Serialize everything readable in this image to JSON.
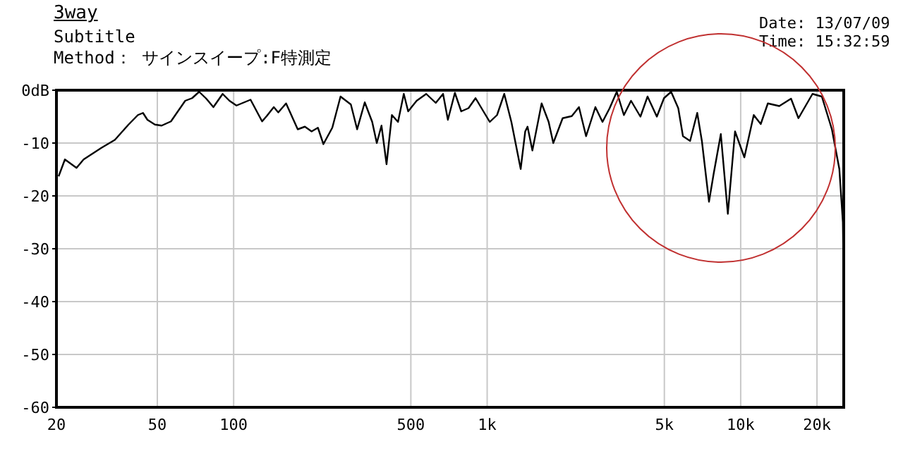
{
  "chart_data": {
    "type": "line",
    "title": "3way",
    "subtitle": "Subtitle",
    "annotations": [
      "Method： サインスイープ:F特測定",
      "Date: 13/07/09",
      "Time: 15:32:59"
    ],
    "x": [
      20.4,
      21.6,
      24,
      25.6,
      30.1,
      34,
      38.5,
      41.9,
      43.9,
      45.7,
      48.9,
      52,
      56.6,
      64.4,
      68.6,
      73.1,
      78,
      83.2,
      90.5,
      96.3,
      102.6,
      116.6,
      129.5,
      135,
      144,
      150,
      161,
      179,
      191,
      203,
      215,
      226,
      245,
      264,
      290,
      307,
      329,
      352,
      367,
      383,
      401,
      421,
      445,
      469,
      488,
      527,
      575,
      627,
      670,
      700,
      746,
      790,
      844,
      900,
      961,
      1024,
      1094,
      1168,
      1246,
      1356,
      1413,
      1443,
      1508,
      1640,
      1748,
      1823,
      1985,
      2157,
      2302,
      2456,
      2672,
      2851,
      3042,
      3245,
      3462,
      3694,
      4023,
      4292,
      4670,
      4984,
      5317,
      5673,
      5920,
      6317,
      6740,
      7030,
      7500,
      7825,
      8350,
      8900,
      9500,
      10340,
      11260,
      12000,
      12800,
      14200,
      15800,
      16900,
      19200,
      20900,
      22900,
      24500,
      25300,
      25500
    ],
    "series": [
      {
        "color": "#000000",
        "values": [
          -16.3,
          -13.1,
          -14.7,
          -13.1,
          -10.9,
          -9.4,
          -6.5,
          -4.7,
          -4.3,
          -5.6,
          -6.5,
          -6.7,
          -5.9,
          -2,
          -1.5,
          -0.3,
          -1.6,
          -3.2,
          -0.7,
          -2,
          -2.9,
          -1.8,
          -5.9,
          -4.9,
          -3.2,
          -4.2,
          -2.5,
          -7.4,
          -6.9,
          -7.8,
          -7.1,
          -10.2,
          -7.1,
          -1.2,
          -2.7,
          -7.4,
          -2.3,
          -6,
          -10,
          -6.7,
          -14,
          -4.7,
          -6,
          -0.7,
          -4,
          -2,
          -0.7,
          -2.4,
          -0.7,
          -5.6,
          -0.5,
          -4,
          -3.4,
          -1.5,
          -3.8,
          -6,
          -4.7,
          -0.7,
          -6,
          -14.9,
          -7.8,
          -6.9,
          -11.4,
          -2.5,
          -6,
          -10,
          -5.3,
          -4.9,
          -3.2,
          -8.7,
          -3.2,
          -6,
          -3.4,
          -0.3,
          -4.7,
          -2,
          -5,
          -1.2,
          -5,
          -1.5,
          -0.3,
          -3.4,
          -8.7,
          -9.6,
          -4.3,
          -9.6,
          -21.1,
          -15.8,
          -8.3,
          -23.4,
          -7.8,
          -12.7,
          -4.7,
          -6.4,
          -2.5,
          -3,
          -1.6,
          -5.3,
          -0.7,
          -1.2,
          -7.4,
          -14.9,
          -25,
          -37
        ]
      }
    ],
    "log": "x",
    "xlim": [
      20,
      25500
    ],
    "xticks": [
      20,
      50,
      100,
      500,
      {
        "value": 1000,
        "label": "1k"
      },
      {
        "value": 5000,
        "label": "5k"
      },
      {
        "value": 10000,
        "label": "10k"
      },
      {
        "value": 20000,
        "label": "20k"
      }
    ],
    "ylim": [
      -60,
      0
    ],
    "yticks": [
      -60,
      -50,
      -40,
      -30,
      -20,
      -10,
      {
        "value": 0,
        "label": "0dB"
      }
    ],
    "grid": true,
    "marker": "none",
    "line_style": "solid",
    "legend": false
  }
}
